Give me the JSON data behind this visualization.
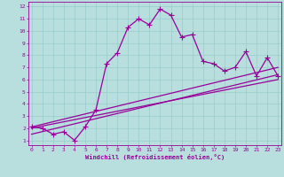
{
  "main_x": [
    0,
    1,
    2,
    3,
    4,
    5,
    6,
    7,
    8,
    9,
    10,
    11,
    12,
    13,
    14,
    15,
    16,
    17,
    18,
    19,
    20,
    21,
    22,
    23
  ],
  "main_y": [
    2.1,
    2.0,
    1.5,
    1.7,
    1.0,
    2.1,
    3.5,
    7.3,
    8.2,
    10.3,
    11.0,
    10.5,
    11.8,
    11.3,
    9.5,
    9.7,
    7.5,
    7.3,
    6.7,
    7.0,
    8.3,
    6.3,
    7.8,
    6.3
  ],
  "trend1_x": [
    0,
    23
  ],
  "trend1_y": [
    2.1,
    7.0
  ],
  "trend2_x": [
    0,
    23
  ],
  "trend2_y": [
    2.0,
    6.0
  ],
  "trend3_x": [
    0,
    23
  ],
  "trend3_y": [
    1.5,
    6.4
  ],
  "xlim": [
    -0.3,
    23.3
  ],
  "ylim": [
    0.6,
    12.4
  ],
  "xticks": [
    0,
    1,
    2,
    3,
    4,
    5,
    6,
    7,
    8,
    9,
    10,
    11,
    12,
    13,
    14,
    15,
    16,
    17,
    18,
    19,
    20,
    21,
    22,
    23
  ],
  "yticks": [
    1,
    2,
    3,
    4,
    5,
    6,
    7,
    8,
    9,
    10,
    11,
    12
  ],
  "xlabel": "Windchill (Refroidissement éolien,°C)",
  "line_color": "#990099",
  "bg_color": "#b8dede",
  "grid_color": "#99cccc",
  "marker": "+",
  "marker_size": 4,
  "line_width": 0.9,
  "tick_fontsize": 4.5,
  "xlabel_fontsize": 5.0
}
